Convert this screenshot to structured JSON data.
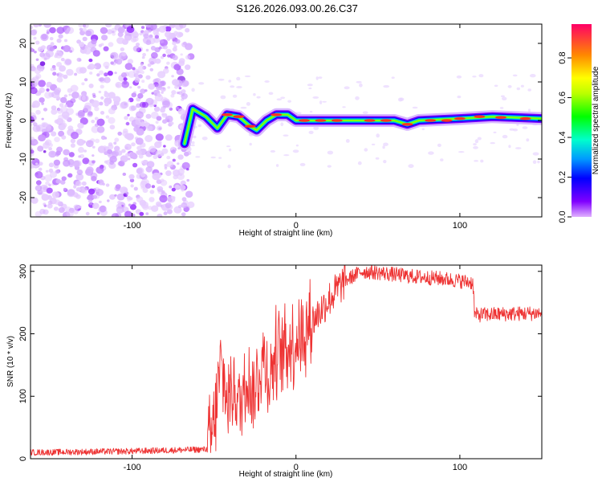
{
  "title": "S126.2026.093.00.26.C37",
  "chart_data": [
    {
      "type": "heatmap",
      "xlabel": "Height of straight line (km)",
      "ylabel": "Frequency (Hz)",
      "xlim": [
        -162,
        150
      ],
      "ylim": [
        -25,
        25
      ],
      "xticks": [
        -100,
        0,
        100
      ],
      "yticks": [
        -20,
        -10,
        0,
        10,
        20
      ],
      "noise_region": [
        -162,
        -64
      ],
      "ridge": [
        {
          "x": -68,
          "f": -6
        },
        {
          "x": -63,
          "f": 3
        },
        {
          "x": -55,
          "f": 1
        },
        {
          "x": -48,
          "f": -2
        },
        {
          "x": -42,
          "f": 1.5
        },
        {
          "x": -35,
          "f": 1
        },
        {
          "x": -28,
          "f": -1.5
        },
        {
          "x": -24,
          "f": -2.5
        },
        {
          "x": -18,
          "f": 0
        },
        {
          "x": -12,
          "f": 1.5
        },
        {
          "x": -5,
          "f": 1.5
        },
        {
          "x": 0,
          "f": 0
        },
        {
          "x": 30,
          "f": 0
        },
        {
          "x": 60,
          "f": 0
        },
        {
          "x": 68,
          "f": -1
        },
        {
          "x": 75,
          "f": 0
        },
        {
          "x": 100,
          "f": 0.5
        },
        {
          "x": 120,
          "f": 1
        },
        {
          "x": 150,
          "f": 0.5
        }
      ],
      "colorbar": {
        "label": "Normalized spectral amplitude",
        "ticks": [
          "0.0",
          "0.2",
          "0.4",
          "0.6",
          "0.8"
        ],
        "range": [
          0,
          0.97
        ]
      }
    },
    {
      "type": "line",
      "xlabel": "Height of straight line (km)",
      "ylabel": "SNR (10 * v/v)",
      "xlim": [
        -162,
        150
      ],
      "ylim": [
        0,
        310
      ],
      "xticks": [
        -100,
        0,
        100
      ],
      "yticks": [
        0,
        100,
        200,
        300
      ],
      "color": "#ee3333",
      "series": [
        {
          "x": -162,
          "y": 10
        },
        {
          "x": -100,
          "y": 12
        },
        {
          "x": -54,
          "y": 15
        },
        {
          "x": -50,
          "y": 50
        },
        {
          "x": -46,
          "y": 150
        },
        {
          "x": -42,
          "y": 90
        },
        {
          "x": -38,
          "y": 120
        },
        {
          "x": -34,
          "y": 80
        },
        {
          "x": -30,
          "y": 140
        },
        {
          "x": -26,
          "y": 100
        },
        {
          "x": -20,
          "y": 160
        },
        {
          "x": -16,
          "y": 130
        },
        {
          "x": -12,
          "y": 170
        },
        {
          "x": -5,
          "y": 180
        },
        {
          "x": 0,
          "y": 190
        },
        {
          "x": 10,
          "y": 220
        },
        {
          "x": 20,
          "y": 255
        },
        {
          "x": 30,
          "y": 285
        },
        {
          "x": 40,
          "y": 300
        },
        {
          "x": 50,
          "y": 298
        },
        {
          "x": 70,
          "y": 292
        },
        {
          "x": 90,
          "y": 288
        },
        {
          "x": 108,
          "y": 282
        },
        {
          "x": 109,
          "y": 230
        },
        {
          "x": 130,
          "y": 232
        },
        {
          "x": 150,
          "y": 233
        }
      ]
    }
  ]
}
